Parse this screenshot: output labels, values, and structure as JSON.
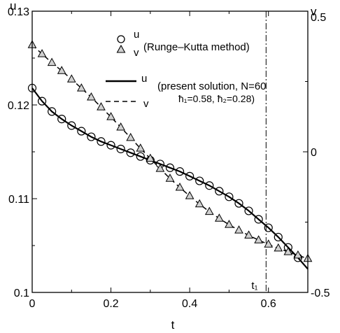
{
  "chart_data": {
    "type": "line",
    "xlabel": "t",
    "ylabel_left": "u",
    "ylabel_right": "v",
    "xlim": [
      0,
      0.7
    ],
    "ylim_left": [
      0.1,
      0.13
    ],
    "ylim_right": [
      -0.5,
      0.5
    ],
    "x_ticks": [
      "0",
      "0.2",
      "0.4",
      "0.6"
    ],
    "y_left_ticks": [
      "0.1",
      "0.11",
      "0.12",
      "0.13"
    ],
    "y_right_ticks": [
      "-0.5",
      "0",
      "0.5"
    ],
    "grid": false,
    "marker_label": "t₁",
    "marker_x": 0.594,
    "legend": {
      "sym_u": "u",
      "sym_v": "v",
      "rk_text": "(Runge–Kutta method)",
      "present_text": "(present solution, N=60",
      "hbar_text": "ħ₁=0.58, ħ₂=0.28)"
    },
    "series": [
      {
        "name": "u",
        "axis": "left",
        "style": "solid",
        "x": [
          0,
          0.025,
          0.05,
          0.075,
          0.1,
          0.125,
          0.15,
          0.175,
          0.2,
          0.225,
          0.25,
          0.275,
          0.3,
          0.325,
          0.35,
          0.375,
          0.4,
          0.425,
          0.45,
          0.475,
          0.5,
          0.525,
          0.55,
          0.575,
          0.6,
          0.625,
          0.65,
          0.675,
          0.7
        ],
        "values": [
          0.1218,
          0.1204,
          0.1193,
          0.1185,
          0.1178,
          0.1172,
          0.1166,
          0.1161,
          0.1157,
          0.1153,
          0.1149,
          0.1145,
          0.1141,
          0.1137,
          0.1133,
          0.1129,
          0.1124,
          0.1119,
          0.1114,
          0.1108,
          0.1102,
          0.1095,
          0.1087,
          0.1078,
          0.1069,
          0.1059,
          0.1048,
          0.1037,
          0.1025
        ]
      },
      {
        "name": "v",
        "axis": "right",
        "style": "dashed",
        "x": [
          0,
          0.025,
          0.05,
          0.075,
          0.1,
          0.125,
          0.15,
          0.175,
          0.2,
          0.225,
          0.25,
          0.275,
          0.3,
          0.325,
          0.35,
          0.375,
          0.4,
          0.425,
          0.45,
          0.475,
          0.5,
          0.525,
          0.55,
          0.575,
          0.6,
          0.625,
          0.65,
          0.675,
          0.7
        ],
        "values": [
          0.38,
          0.348,
          0.317,
          0.288,
          0.258,
          0.226,
          0.194,
          0.159,
          0.124,
          0.087,
          0.05,
          0.012,
          -0.024,
          -0.06,
          -0.095,
          -0.127,
          -0.157,
          -0.186,
          -0.213,
          -0.237,
          -0.259,
          -0.279,
          -0.297,
          -0.314,
          -0.329,
          -0.343,
          -0.356,
          -0.368,
          -0.38
        ]
      },
      {
        "name": "u",
        "axis": "left",
        "style": "circle",
        "x": [
          0,
          0.025,
          0.05,
          0.075,
          0.1,
          0.125,
          0.15,
          0.175,
          0.2,
          0.225,
          0.25,
          0.275,
          0.3,
          0.325,
          0.35,
          0.375,
          0.4,
          0.425,
          0.45,
          0.475,
          0.5,
          0.525,
          0.55,
          0.575,
          0.6,
          0.625,
          0.65,
          0.675
        ],
        "values": [
          0.1218,
          0.1204,
          0.1193,
          0.1185,
          0.1178,
          0.1172,
          0.1166,
          0.1161,
          0.1157,
          0.1153,
          0.1149,
          0.1145,
          0.1141,
          0.1137,
          0.1133,
          0.1129,
          0.1124,
          0.1119,
          0.1114,
          0.1108,
          0.1102,
          0.1095,
          0.1087,
          0.1078,
          0.1069,
          0.1059,
          0.1048,
          0.1037
        ]
      },
      {
        "name": "v",
        "axis": "right",
        "style": "triangle",
        "x": [
          0,
          0.025,
          0.05,
          0.075,
          0.1,
          0.125,
          0.15,
          0.175,
          0.2,
          0.225,
          0.25,
          0.275,
          0.3,
          0.325,
          0.35,
          0.375,
          0.4,
          0.425,
          0.45,
          0.475,
          0.5,
          0.525,
          0.55,
          0.575,
          0.6,
          0.625,
          0.65,
          0.675,
          0.7
        ],
        "values": [
          0.38,
          0.348,
          0.317,
          0.288,
          0.258,
          0.226,
          0.194,
          0.159,
          0.124,
          0.087,
          0.05,
          0.012,
          -0.024,
          -0.06,
          -0.095,
          -0.127,
          -0.157,
          -0.186,
          -0.213,
          -0.237,
          -0.259,
          -0.279,
          -0.297,
          -0.314,
          -0.329,
          -0.343,
          -0.356,
          -0.368,
          -0.38
        ]
      }
    ]
  }
}
